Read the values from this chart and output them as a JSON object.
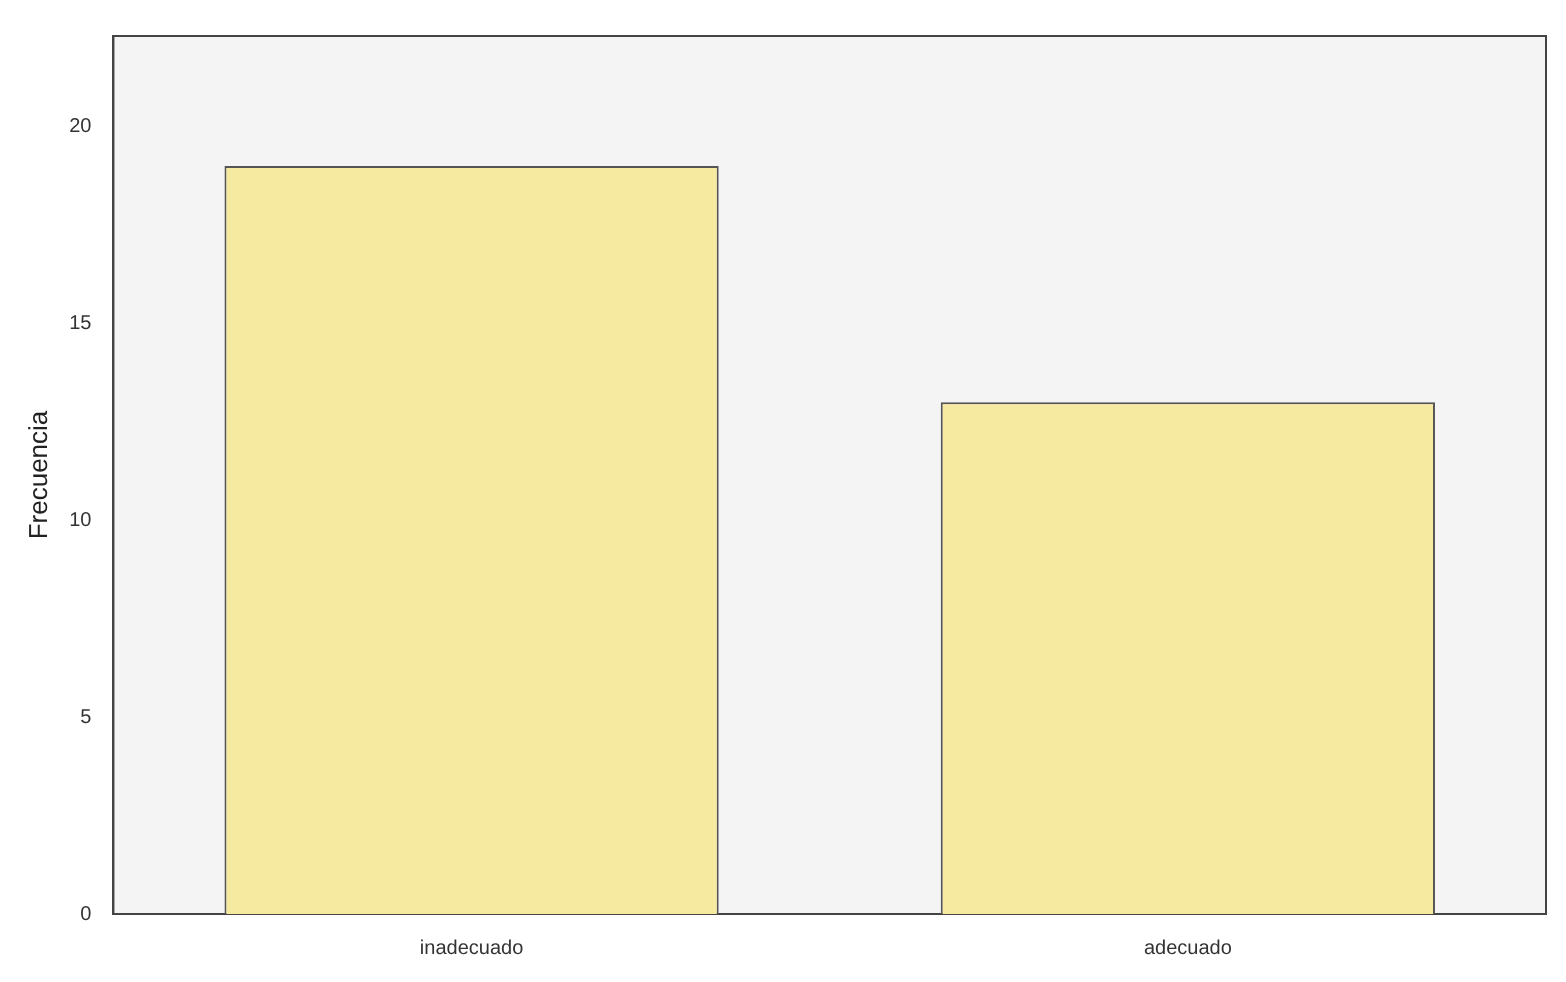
{
  "chart_data": {
    "type": "bar",
    "ylabel": "Frecuencia",
    "categories": [
      "inadecuado",
      "adecuado"
    ],
    "values": [
      19,
      13
    ],
    "color": "#f6eaa0",
    "ylim": [
      0,
      22.3
    ],
    "yticks": [
      0,
      5,
      10,
      15,
      20
    ],
    "grid": false,
    "legend": false
  }
}
